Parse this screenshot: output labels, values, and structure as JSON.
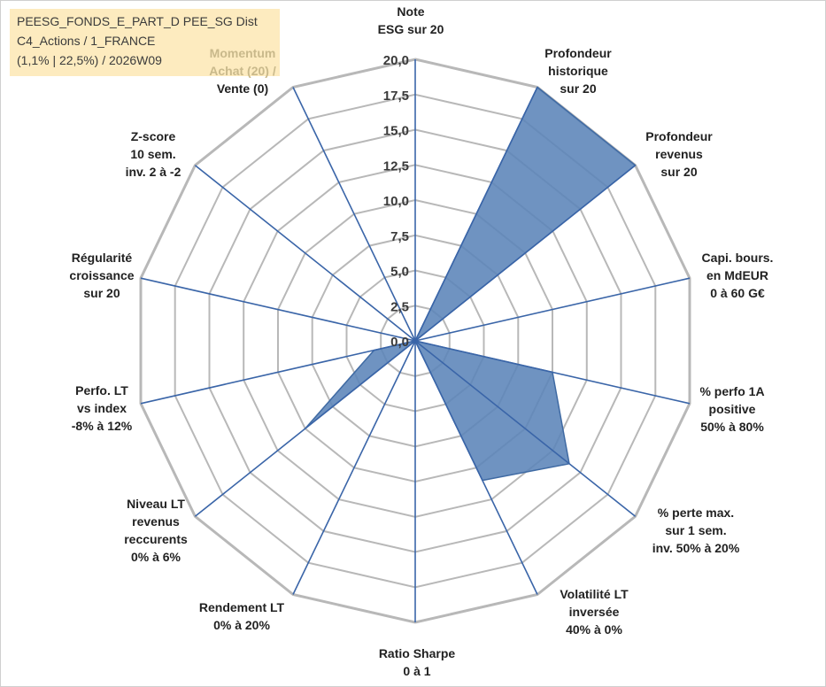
{
  "title_box": {
    "lines": [
      "PEESG_FONDS_E_PART_D PEE_SG Dist",
      "C4_Actions / 1_FRANCE",
      "(1,1% | 22,5%) / 2026W09"
    ]
  },
  "chart_data": {
    "type": "radar",
    "scale": {
      "min": 0,
      "max": 20,
      "step": 2.5
    },
    "tick_labels": [
      "0,0",
      "2,5",
      "5,0",
      "7,5",
      "10,0",
      "12,5",
      "15,0",
      "17,5",
      "20,0"
    ],
    "colors": {
      "fill": "#5b84b8",
      "edge": "#3f6aa3",
      "grid": "#b8b8b8",
      "spoke": "#3a65a8"
    },
    "axes": [
      {
        "lines": [
          "Note",
          "ESG sur 20"
        ],
        "value": 0
      },
      {
        "lines": [
          "Profondeur",
          "historique",
          "sur 20"
        ],
        "value": 20
      },
      {
        "lines": [
          "Profondeur",
          "revenus",
          "sur 20"
        ],
        "value": 20
      },
      {
        "lines": [
          "Capi. bours.",
          "en MdEUR",
          "0 à 60 G€"
        ],
        "value": 0
      },
      {
        "lines": [
          "% perfo 1A",
          "positive",
          "50% à 80%"
        ],
        "value": 10
      },
      {
        "lines": [
          "% perte max.",
          "sur 1 sem.",
          "inv. 50% à 20%"
        ],
        "value": 14
      },
      {
        "lines": [
          "Volatilité LT",
          "inversée",
          "40% à 0%"
        ],
        "value": 11
      },
      {
        "lines": [
          "Ratio Sharpe",
          "0 à 1"
        ],
        "value": 0
      },
      {
        "lines": [
          "Rendement LT",
          "0% à 20%"
        ],
        "value": 0
      },
      {
        "lines": [
          "Niveau LT",
          "revenus",
          "reccurents",
          "0% à 6%"
        ],
        "value": 10
      },
      {
        "lines": [
          "Perfo. LT",
          "vs index",
          "-8% à 12%"
        ],
        "value": 3
      },
      {
        "lines": [
          "Régularité",
          "croissance",
          "sur 20"
        ],
        "value": 0
      },
      {
        "lines": [
          "Z-score",
          "10 sem.",
          "inv. 2 à -2"
        ],
        "value": 0
      },
      {
        "lines": [
          "Momentum",
          "Achat (20) /",
          "Vente (0)"
        ],
        "value": 0,
        "faded_lines": 2
      }
    ]
  }
}
